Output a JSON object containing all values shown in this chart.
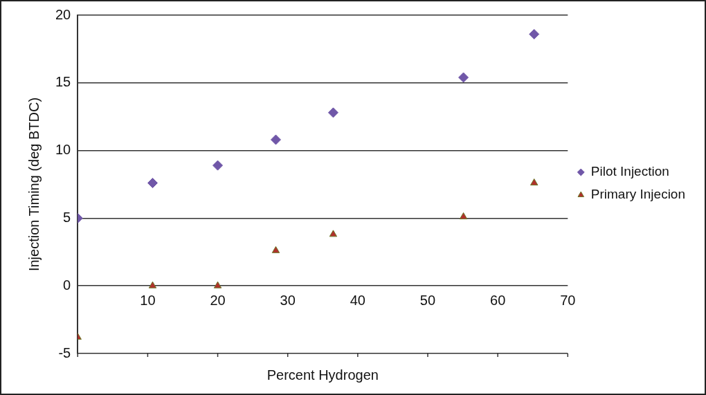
{
  "chart_data": {
    "type": "scatter",
    "xlabel": "Percent Hydrogen",
    "ylabel": "Injection Timing (deg BTDC)",
    "xlim": [
      0,
      70
    ],
    "xticks": [
      {
        "value": 0,
        "label": null
      },
      10,
      20,
      30,
      40,
      50,
      60,
      70
    ],
    "ylim": [
      -5,
      20
    ],
    "yticks": [
      -5,
      0,
      5,
      10,
      15,
      20
    ],
    "grid": "y",
    "legend": "right",
    "series": [
      {
        "name": "Pilot Injection",
        "color": "#7057a8",
        "marker": "diamond",
        "x": [
          0,
          10.7,
          20,
          28.3,
          36.5,
          55.1,
          65.2
        ],
        "values": [
          5,
          7.6,
          8.9,
          10.8,
          12.8,
          15.4,
          18.6
        ]
      },
      {
        "name": "Primary Injecion",
        "color": "#b0302c",
        "marker": "triangle",
        "x": [
          0,
          10.7,
          20,
          28.3,
          36.5,
          55.1,
          65.2
        ],
        "values": [
          -3.8,
          0,
          0,
          2.6,
          3.8,
          5.1,
          7.6
        ]
      }
    ]
  }
}
